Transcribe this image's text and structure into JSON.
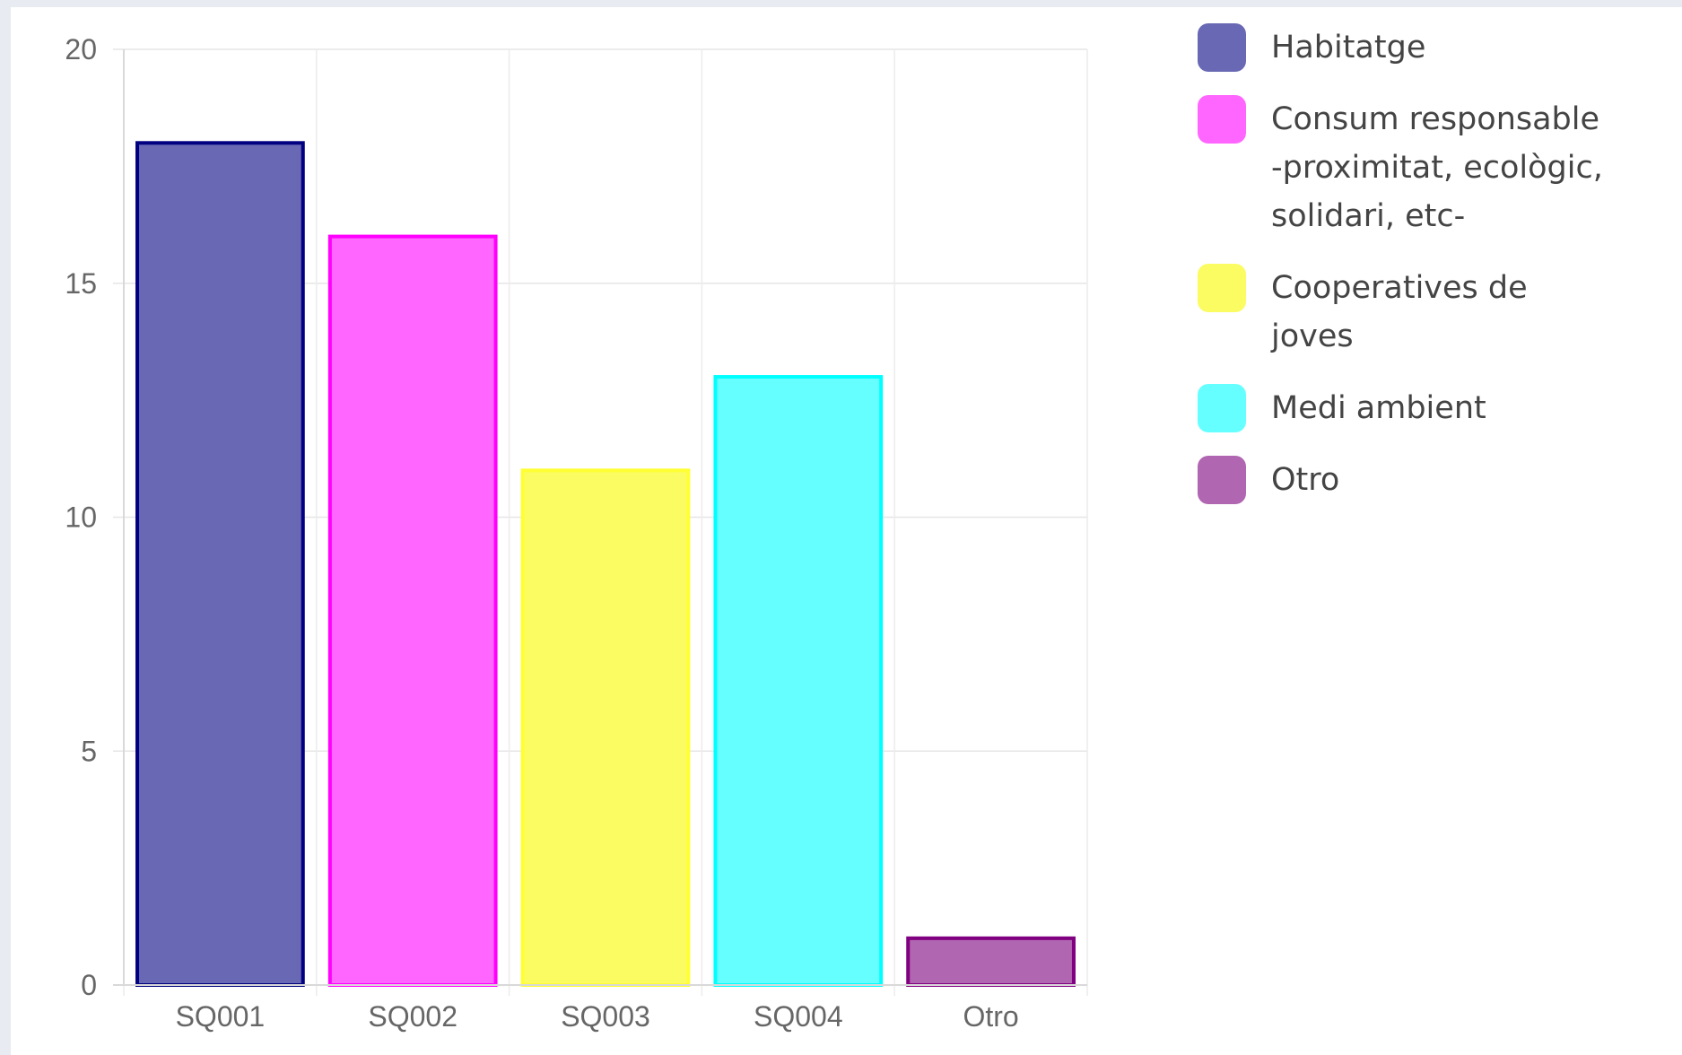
{
  "chart_data": {
    "type": "bar",
    "categories": [
      "SQ001",
      "SQ002",
      "SQ003",
      "SQ004",
      "Otro"
    ],
    "values": [
      18,
      16,
      11,
      13,
      1
    ],
    "ylim": [
      0,
      20
    ],
    "yticks": [
      0,
      5,
      10,
      15,
      20
    ],
    "grid": true,
    "legend_position": "right",
    "fill_colors": [
      "#6868b4",
      "#ff66ff",
      "#fbfb62",
      "#66ffff",
      "#b066b0"
    ],
    "border_colors": [
      "#000080",
      "#ff00ff",
      "#ffff33",
      "#00ffff",
      "#800080"
    ],
    "legend": [
      {
        "label": "Habitatge",
        "color": "#6868b4"
      },
      {
        "label": "Consum responsable\n-proximitat, ecològic,\nsolidari, etc-",
        "color": "#ff66ff"
      },
      {
        "label": "Cooperatives de\njoves",
        "color": "#fbfb62"
      },
      {
        "label": "Medi ambient",
        "color": "#66ffff"
      },
      {
        "label": "Otro",
        "color": "#b066b0"
      }
    ]
  }
}
